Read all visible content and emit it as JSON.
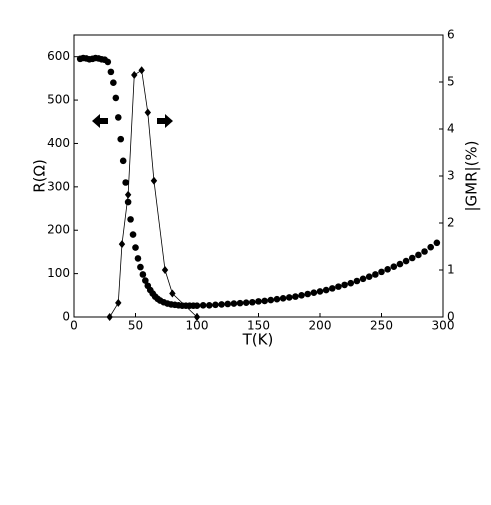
{
  "chart_data": {
    "type": "scatter",
    "xlabel": "T(K)",
    "ylabel": "R(Ω)",
    "y2label": "|GMR|(%)",
    "xlim": [
      0,
      300
    ],
    "xticks": [
      0,
      50,
      100,
      150,
      200,
      250,
      300
    ],
    "ylim": [
      0,
      650
    ],
    "yticks": [
      0,
      100,
      200,
      300,
      400,
      500,
      600
    ],
    "y2lim": [
      0,
      6
    ],
    "y2ticks": [
      0,
      1,
      2,
      3,
      4,
      5,
      6
    ],
    "series": [
      {
        "color": "#000000",
        "marker": "circle",
        "line": false,
        "x": [
          5,
          7.5,
          10,
          12.5,
          15,
          17.5,
          20,
          22.5,
          25,
          27.5,
          30,
          32,
          34,
          36,
          38,
          40,
          42,
          44,
          46,
          48,
          50,
          52,
          54,
          56,
          58,
          60,
          62,
          64,
          66,
          68,
          70,
          73,
          76,
          79,
          82,
          85,
          88,
          91,
          94,
          97,
          100,
          105,
          110,
          115,
          120,
          125,
          130,
          135,
          140,
          145,
          150,
          155,
          160,
          165,
          170,
          175,
          180,
          185,
          190,
          195,
          200,
          205,
          210,
          215,
          220,
          225,
          230,
          235,
          240,
          245,
          250,
          255,
          260,
          265,
          270,
          275,
          280,
          285,
          290,
          295
        ],
        "values": [
          595,
          597,
          596,
          594,
          595,
          597,
          596,
          594,
          593,
          588,
          565,
          540,
          505,
          460,
          410,
          360,
          310,
          265,
          225,
          190,
          160,
          135,
          115,
          98,
          84,
          72,
          62,
          54,
          47,
          42,
          38,
          34,
          31,
          29,
          28,
          27,
          26,
          26,
          26,
          26,
          26,
          27,
          27,
          28,
          29,
          30,
          31,
          32,
          33,
          34,
          36,
          37,
          39,
          41,
          43,
          45,
          47,
          50,
          53,
          56,
          59,
          62,
          66,
          70,
          74,
          78,
          83,
          88,
          93,
          98,
          104,
          110,
          116,
          122,
          129,
          136,
          143,
          151,
          161,
          171
        ]
      },
      {
        "color": "#000000",
        "marker": "diamond",
        "line": true,
        "axis": "y2",
        "x": [
          29,
          36,
          39,
          44,
          49,
          55,
          60,
          65,
          74,
          80,
          100
        ],
        "values": [
          0,
          0.3,
          1.55,
          2.6,
          5.15,
          5.25,
          4.35,
          2.9,
          1.0,
          0.5,
          0
        ]
      }
    ]
  }
}
